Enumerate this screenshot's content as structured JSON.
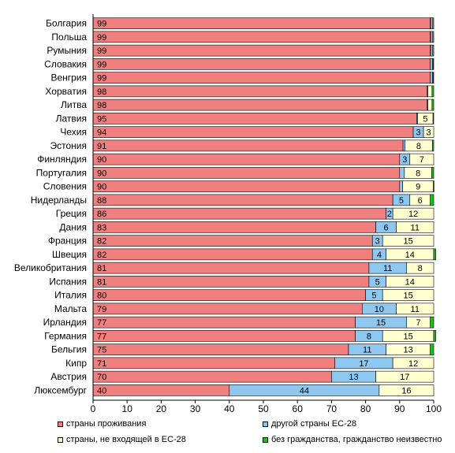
{
  "chart_data": {
    "type": "bar",
    "orientation": "horizontal",
    "stacked": true,
    "xlim": [
      0,
      100
    ],
    "xticks": [
      "0",
      "10",
      "20",
      "30",
      "40",
      "50",
      "60",
      "70",
      "80",
      "90",
      "100"
    ],
    "grid": false,
    "legend_position": "bottom",
    "categories": [
      "Болгария",
      "Польша",
      "Румыния",
      "Словакия",
      "Венгрия",
      "Хорватия",
      "Литва",
      "Латвия",
      "Чехия",
      "Эстония",
      "Финляндия",
      "Португалия",
      "Словения",
      "Нидерланды",
      "Греция",
      "Дания",
      "Франция",
      "Швеция",
      "Великобритания",
      "Испания",
      "Италия",
      "Мальта",
      "Ирландия",
      "Германия",
      "Бельгия",
      "Кипр",
      "Австрия",
      "Люксембург"
    ],
    "series": [
      {
        "name": "страны проживания",
        "color": "#f08080",
        "values": [
          99,
          99,
          99,
          99,
          99,
          98,
          98,
          95,
          94,
          91,
          90,
          90,
          90,
          88,
          86,
          83,
          82,
          82,
          81,
          81,
          80,
          79,
          77,
          77,
          75,
          71,
          70,
          40
        ],
        "labels": [
          "99",
          "99",
          "99",
          "99",
          "99",
          "98",
          "98",
          "95",
          "94",
          "91",
          "90",
          "90",
          "90",
          "88",
          "86",
          "83",
          "82",
          "82",
          "81",
          "81",
          "80",
          "79",
          "77",
          "77",
          "75",
          "71",
          "70",
          "40"
        ]
      },
      {
        "name": "другой страны ЕС-28",
        "color": "#8ec8f0",
        "values": [
          0.3,
          0.3,
          0.3,
          0.6,
          0.6,
          0.3,
          0.3,
          0.3,
          3,
          0.6,
          3,
          1.4,
          0.9,
          5,
          2,
          6,
          3,
          4,
          11,
          5,
          5,
          10,
          15,
          8,
          11,
          17,
          13,
          44
        ],
        "labels": [
          "",
          "",
          "",
          "",
          "",
          "",
          "",
          "",
          "3",
          "",
          "3",
          "",
          "",
          "5",
          "2",
          "6",
          "3",
          "4",
          "11",
          "5",
          "5",
          "10",
          "15",
          "8",
          "11",
          "17",
          "13",
          "44"
        ]
      },
      {
        "name": "страны, не входящей в ЕС-28",
        "color": "#ffffd0",
        "values": [
          0.4,
          0.4,
          0.4,
          0.2,
          0.2,
          1.2,
          1.2,
          4.5,
          3,
          8,
          7,
          8,
          9,
          6,
          12,
          11,
          15,
          14,
          8,
          14,
          15,
          11,
          7,
          15,
          13,
          12,
          17,
          16
        ],
        "labels": [
          "",
          "",
          "",
          "",
          "",
          "",
          "",
          "5",
          "3",
          "8",
          "7",
          "8",
          "9",
          "6",
          "12",
          "11",
          "15",
          "14",
          "8",
          "14",
          "15",
          "11",
          "7",
          "15",
          "13",
          "12",
          "17",
          "16"
        ]
      },
      {
        "name": "без гражданства, гражданство неизвестно",
        "color": "#22bb22",
        "values": [
          0.3,
          0.3,
          0.3,
          0.2,
          0.2,
          0.5,
          0.5,
          0.2,
          0,
          0.4,
          0,
          0.6,
          0.1,
          1,
          0,
          0,
          0,
          0.6,
          0,
          0,
          0,
          0,
          1,
          0.6,
          1,
          0,
          0,
          0
        ],
        "labels": [
          "",
          "",
          "",
          "",
          "",
          "",
          "",
          "",
          "",
          "",
          "",
          "",
          "",
          "",
          "",
          "",
          "",
          "",
          "",
          "",
          "",
          "",
          "",
          "",
          "",
          "",
          "",
          ""
        ]
      }
    ]
  }
}
